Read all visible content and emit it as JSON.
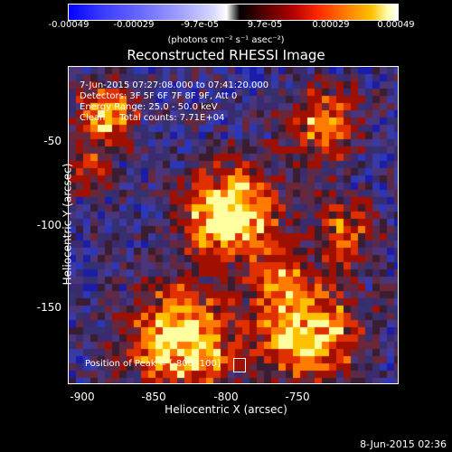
{
  "colorbar": {
    "ticks": [
      "-0.00049",
      "-0.00029",
      "-9.7e-05",
      "9.7e-05",
      "0.00029",
      "0.00049"
    ],
    "units": "(photons cm⁻² s⁻¹ asec⁻²)"
  },
  "title": "Reconstructed RHESSI Image",
  "info": {
    "line1": "7-Jun-2015 07:27:08.000 to 07:41:20.000",
    "line2": "Detectors: 3F 5F 6F 7F 8F 9F, Att 0",
    "line3": "Energy Range: 25.0 - 50.0 keV",
    "line4": "Clean     Total counts: 7.71E+04",
    "peak": "Position of Peak = [-800,-100]"
  },
  "axes": {
    "xlabel": "Heliocentric X (arcsec)",
    "ylabel": "Heliocentric Y (arcsec)",
    "xticks": [
      "-900",
      "-850",
      "-800",
      "-750"
    ],
    "yticks": [
      "-50",
      "-100",
      "-150"
    ]
  },
  "timestamp": "8-Jun-2015 02:36",
  "colors": {
    "background": "#000000",
    "axis": "#ffffff",
    "map_base": "#3b2a6e"
  }
}
